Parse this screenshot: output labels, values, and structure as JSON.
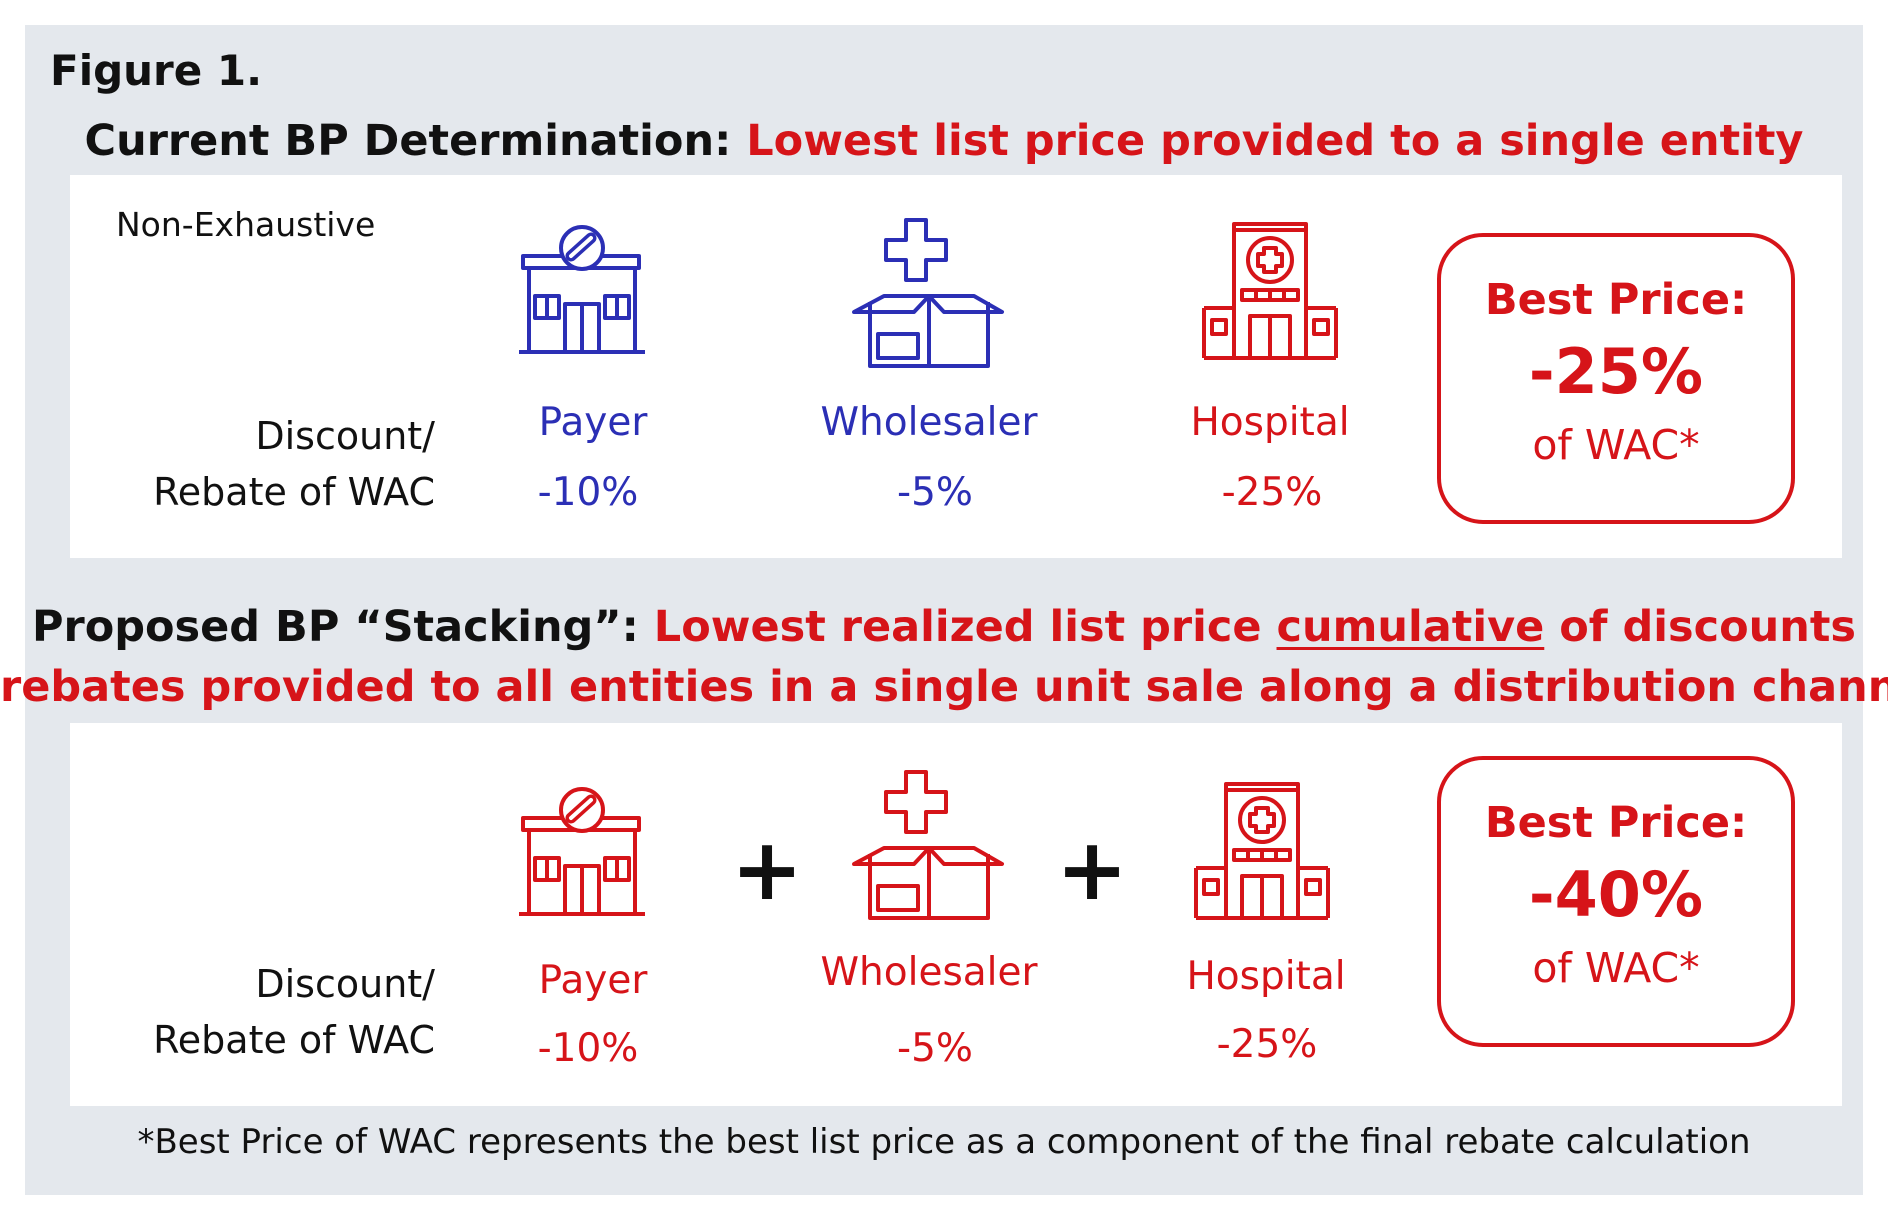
{
  "figure_label": "Figure 1.",
  "current": {
    "heading_black": "Current BP Determination:",
    "heading_red": "Lowest list price provided to a single entity",
    "note": "Non-Exhaustive",
    "row_label_1": "Discount/",
    "row_label_2": "Rebate of WAC",
    "entities": [
      {
        "name": "Payer",
        "value": "-10%",
        "icon": "pharmacy-icon"
      },
      {
        "name": "Wholesaler",
        "value": "-5%",
        "icon": "box-icon"
      },
      {
        "name": "Hospital",
        "value": "-25%",
        "icon": "hospital-icon"
      }
    ],
    "best_price": {
      "title": "Best Price:",
      "value": "-25%",
      "sub": "of WAC*"
    }
  },
  "proposed": {
    "heading_black": "Proposed BP “Stacking”:",
    "heading_red_pre": "Lowest realized list price",
    "heading_red_underlined": "cumulative",
    "heading_red_post": "of discounts",
    "heading_line2": "rebates provided to all entities in a single unit sale along a distribution channel",
    "row_label_1": "Discount/",
    "row_label_2": "Rebate of WAC",
    "plus": "+",
    "entities": [
      {
        "name": "Payer",
        "value": "-10%",
        "icon": "pharmacy-icon"
      },
      {
        "name": "Wholesaler",
        "value": "-5%",
        "icon": "box-icon"
      },
      {
        "name": "Hospital",
        "value": "-25%",
        "icon": "hospital-icon"
      }
    ],
    "best_price": {
      "title": "Best Price:",
      "value": "-40%",
      "sub": "of WAC*"
    }
  },
  "footnote": "*Best Price of WAC represents the best list price as a component of the final rebate calculation",
  "colors": {
    "blue": "#2b2fb5",
    "red": "#d61419",
    "background": "#e4e8ed"
  }
}
